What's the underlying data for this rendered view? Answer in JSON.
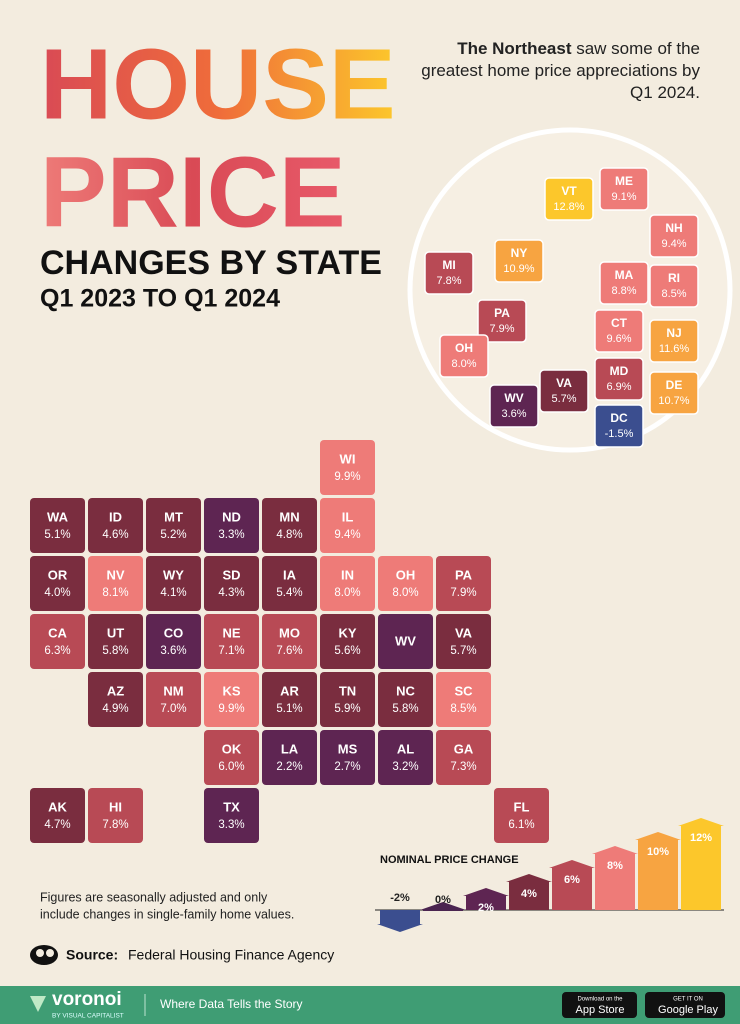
{
  "header": {
    "title_line1": "HOUSE",
    "title_line2": "PRICE",
    "subtitle": "CHANGES BY STATE",
    "period": "Q1 2023 TO Q1 2024"
  },
  "intro": {
    "lead": "The Northeast",
    "text": "saw some of the greatest home price appreciations by Q1 2024."
  },
  "map": {
    "states": [
      {
        "abbr": "WA",
        "value": 5.1,
        "value_label": "5.1%"
      },
      {
        "abbr": "OR",
        "value": 4.0,
        "value_label": "4.0%"
      },
      {
        "abbr": "CA",
        "value": 6.3,
        "value_label": "6.3%"
      },
      {
        "abbr": "NV",
        "value": 8.1,
        "value_label": "8.1%"
      },
      {
        "abbr": "ID",
        "value": 4.6,
        "value_label": "4.6%"
      },
      {
        "abbr": "MT",
        "value": 5.2,
        "value_label": "5.2%"
      },
      {
        "abbr": "WY",
        "value": 4.1,
        "value_label": "4.1%"
      },
      {
        "abbr": "UT",
        "value": 5.8,
        "value_label": "5.8%"
      },
      {
        "abbr": "AZ",
        "value": 4.9,
        "value_label": "4.9%"
      },
      {
        "abbr": "CO",
        "value": 3.6,
        "value_label": "3.6%"
      },
      {
        "abbr": "NM",
        "value": 7.0,
        "value_label": "7.0%"
      },
      {
        "abbr": "ND",
        "value": 3.3,
        "value_label": "3.3%"
      },
      {
        "abbr": "SD",
        "value": 4.3,
        "value_label": "4.3%"
      },
      {
        "abbr": "NE",
        "value": 7.1,
        "value_label": "7.1%"
      },
      {
        "abbr": "KS",
        "value": 9.9,
        "value_label": "9.9%"
      },
      {
        "abbr": "OK",
        "value": 6.0,
        "value_label": "6.0%"
      },
      {
        "abbr": "TX",
        "value": 3.3,
        "value_label": "3.3%"
      },
      {
        "abbr": "MN",
        "value": 4.8,
        "value_label": "4.8%"
      },
      {
        "abbr": "IA",
        "value": 5.4,
        "value_label": "5.4%"
      },
      {
        "abbr": "MO",
        "value": 7.6,
        "value_label": "7.6%"
      },
      {
        "abbr": "AR",
        "value": 5.1,
        "value_label": "5.1%"
      },
      {
        "abbr": "LA",
        "value": 2.2,
        "value_label": "2.2%"
      },
      {
        "abbr": "WI",
        "value": 9.9,
        "value_label": "9.9%"
      },
      {
        "abbr": "IL",
        "value": 9.4,
        "value_label": "9.4%"
      },
      {
        "abbr": "IN",
        "value": 8.0,
        "value_label": "8.0%"
      },
      {
        "abbr": "OH",
        "value": 8.0,
        "value_label": "8.0%"
      },
      {
        "abbr": "KY",
        "value": 5.6,
        "value_label": "5.6%"
      },
      {
        "abbr": "TN",
        "value": 5.9,
        "value_label": "5.9%"
      },
      {
        "abbr": "MS",
        "value": 2.7,
        "value_label": "2.7%"
      },
      {
        "abbr": "AL",
        "value": 3.2,
        "value_label": "3.2%"
      },
      {
        "abbr": "GA",
        "value": 7.3,
        "value_label": "7.3%"
      },
      {
        "abbr": "FL",
        "value": 6.1,
        "value_label": "6.1%"
      },
      {
        "abbr": "SC",
        "value": 8.5,
        "value_label": "8.5%"
      },
      {
        "abbr": "NC",
        "value": 5.8,
        "value_label": "5.8%"
      },
      {
        "abbr": "VA",
        "value": 5.7,
        "value_label": "5.7%"
      },
      {
        "abbr": "WV",
        "value": 3.6
      },
      {
        "abbr": "PA",
        "value": 7.9,
        "value_label": "7.9%"
      },
      {
        "abbr": "AK",
        "value": 4.7,
        "value_label": "4.7%"
      },
      {
        "abbr": "HI",
        "value": 7.8,
        "value_label": "7.8%"
      }
    ]
  },
  "inset": {
    "states": [
      {
        "abbr": "VT",
        "value": 12.8,
        "value_label": "12.8%"
      },
      {
        "abbr": "ME",
        "value": 9.1,
        "value_label": "9.1%"
      },
      {
        "abbr": "NH",
        "value": 9.4,
        "value_label": "9.4%"
      },
      {
        "abbr": "MA",
        "value": 8.8,
        "value_label": "8.8%"
      },
      {
        "abbr": "NY",
        "value": 10.9,
        "value_label": "10.9%"
      },
      {
        "abbr": "RI",
        "value": 8.5,
        "value_label": "8.5%"
      },
      {
        "abbr": "CT",
        "value": 9.6,
        "value_label": "9.6%"
      },
      {
        "abbr": "MI",
        "value": 7.8,
        "value_label": "7.8%"
      },
      {
        "abbr": "PA",
        "value": 7.9,
        "value_label": "7.9%"
      },
      {
        "abbr": "NJ",
        "value": 11.6,
        "value_label": "11.6%"
      },
      {
        "abbr": "OH",
        "value": 8.0,
        "value_label": "8.0%"
      },
      {
        "abbr": "WV",
        "value": 3.6,
        "value_label": "3.6%"
      },
      {
        "abbr": "VA",
        "value": 5.7,
        "value_label": "5.7%"
      },
      {
        "abbr": "MD",
        "value": 6.9,
        "value_label": "6.9%"
      },
      {
        "abbr": "DE",
        "value": 10.7,
        "value_label": "10.7%"
      },
      {
        "abbr": "DC",
        "value": -1.5,
        "value_label": "-1.5%"
      }
    ]
  },
  "legend": {
    "title": "NOMINAL PRICE CHANGE",
    "steps": [
      {
        "value": -2,
        "label": "-2%",
        "color": "#3b4e8f"
      },
      {
        "value": 0,
        "label": "0%",
        "color": "#4a2450"
      },
      {
        "value": 2,
        "label": "2%",
        "color": "#5e2552"
      },
      {
        "value": 4,
        "label": "4%",
        "color": "#7a2d3f"
      },
      {
        "value": 6,
        "label": "6%",
        "color": "#b84a55"
      },
      {
        "value": 8,
        "label": "8%",
        "color": "#ee7b78"
      },
      {
        "value": 10,
        "label": "10%",
        "color": "#f7a441"
      },
      {
        "value": 12,
        "label": "12%",
        "color": "#fcc72b"
      }
    ]
  },
  "footnote": [
    "Figures are seasonally adjusted and only",
    "include changes in single-family home values."
  ],
  "source": {
    "label": "Source:",
    "text": "Federal Housing Finance Agency"
  },
  "footer": {
    "brand": "voronoi",
    "brand_sub": "BY VISUAL CAPITALIST",
    "tagline": "Where Data Tells the Story",
    "apple_small": "Download on the",
    "apple": "App Store",
    "google_small": "GET IT ON",
    "google": "Google Play"
  }
}
